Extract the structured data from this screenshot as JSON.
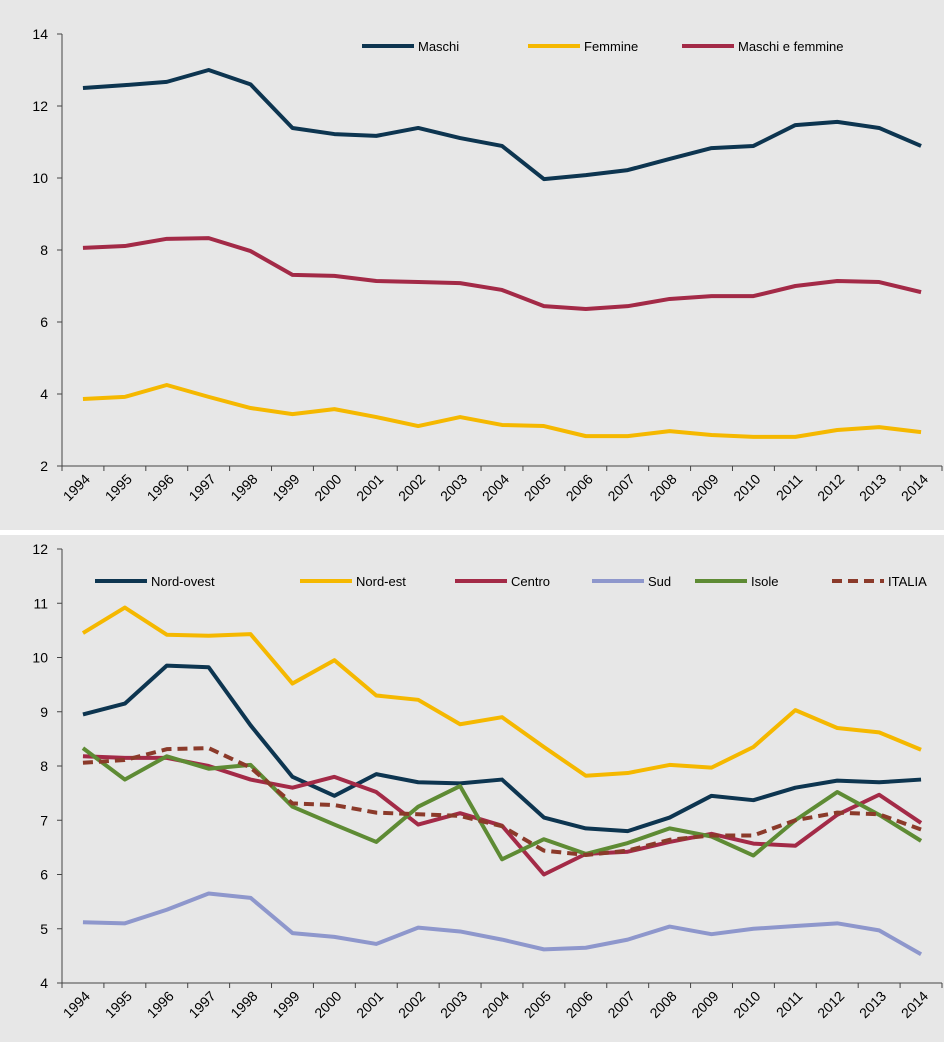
{
  "chart_data": [
    {
      "type": "line",
      "categories": [
        "1994",
        "1995",
        "1996",
        "1997",
        "1998",
        "1999",
        "2000",
        "2001",
        "2002",
        "2003",
        "2004",
        "2005",
        "2006",
        "2007",
        "2008",
        "2009",
        "2010",
        "2011",
        "2012",
        "2013",
        "2014"
      ],
      "ylim": [
        2,
        14
      ],
      "yticks": [
        2,
        4,
        6,
        8,
        10,
        12,
        14
      ],
      "series": [
        {
          "name": "Maschi",
          "color": "#0d3550",
          "values": [
            12.5,
            12.58,
            12.67,
            13.0,
            12.6,
            11.39,
            11.22,
            11.17,
            11.39,
            11.11,
            10.89,
            9.97,
            10.08,
            10.22,
            10.53,
            10.83,
            10.89,
            11.47,
            11.56,
            11.39,
            10.89
          ]
        },
        {
          "name": "Femmine",
          "color": "#f5b800",
          "values": [
            3.86,
            3.92,
            4.25,
            3.92,
            3.61,
            3.44,
            3.58,
            3.36,
            3.11,
            3.36,
            3.14,
            3.11,
            2.83,
            2.83,
            2.97,
            2.86,
            2.81,
            2.81,
            3.0,
            3.08,
            2.94
          ]
        },
        {
          "name": "Maschi e femmine",
          "color": "#a32a47",
          "values": [
            8.06,
            8.11,
            8.31,
            8.33,
            7.97,
            7.31,
            7.28,
            7.14,
            7.11,
            7.08,
            6.89,
            6.44,
            6.36,
            6.44,
            6.64,
            6.72,
            6.72,
            7.0,
            7.14,
            7.11,
            6.83
          ]
        }
      ]
    },
    {
      "type": "line",
      "categories": [
        "1994",
        "1995",
        "1996",
        "1997",
        "1998",
        "1999",
        "2000",
        "2001",
        "2002",
        "2003",
        "2004",
        "2005",
        "2006",
        "2007",
        "2008",
        "2009",
        "2010",
        "2011",
        "2012",
        "2013",
        "2014"
      ],
      "ylim": [
        4,
        12
      ],
      "yticks": [
        4,
        5,
        6,
        7,
        8,
        9,
        10,
        11,
        12
      ],
      "series": [
        {
          "name": "Nord-ovest",
          "color": "#0d3550",
          "values": [
            8.95,
            9.15,
            9.85,
            9.82,
            8.75,
            7.8,
            7.45,
            7.85,
            7.7,
            7.68,
            7.75,
            7.05,
            6.85,
            6.8,
            7.05,
            7.45,
            7.37,
            7.6,
            7.73,
            7.7,
            7.75
          ]
        },
        {
          "name": "Nord-est",
          "color": "#f5b800",
          "values": [
            10.45,
            10.92,
            10.42,
            10.4,
            10.43,
            9.52,
            9.95,
            9.3,
            9.22,
            8.77,
            8.9,
            8.35,
            7.82,
            7.87,
            8.02,
            7.97,
            8.35,
            9.03,
            8.7,
            8.62,
            8.3
          ]
        },
        {
          "name": "Centro",
          "color": "#a32a47",
          "values": [
            8.18,
            8.15,
            8.15,
            8.0,
            7.75,
            7.6,
            7.8,
            7.52,
            6.92,
            7.13,
            6.9,
            6.0,
            6.38,
            6.42,
            6.6,
            6.75,
            6.57,
            6.53,
            7.1,
            7.47,
            6.95
          ]
        },
        {
          "name": "Sud",
          "color": "#8e97cc",
          "values": [
            5.12,
            5.1,
            5.35,
            5.65,
            5.57,
            4.92,
            4.85,
            4.72,
            5.02,
            4.95,
            4.8,
            4.62,
            4.65,
            4.8,
            5.04,
            4.9,
            5.0,
            5.05,
            5.1,
            4.97,
            4.53
          ]
        },
        {
          "name": "Isole",
          "color": "#5e8b34",
          "values": [
            8.33,
            7.75,
            8.18,
            7.95,
            8.02,
            7.25,
            6.92,
            6.6,
            7.25,
            7.63,
            6.28,
            6.65,
            6.38,
            6.58,
            6.85,
            6.7,
            6.35,
            7.0,
            7.52,
            7.1,
            6.62
          ]
        },
        {
          "name": "ITALIA",
          "color": "#8b3a2a",
          "dashed": true,
          "values": [
            8.06,
            8.11,
            8.31,
            8.33,
            7.97,
            7.31,
            7.28,
            7.14,
            7.11,
            7.08,
            6.89,
            6.44,
            6.36,
            6.44,
            6.64,
            6.72,
            6.72,
            7.0,
            7.14,
            7.11,
            6.83
          ]
        }
      ]
    }
  ]
}
